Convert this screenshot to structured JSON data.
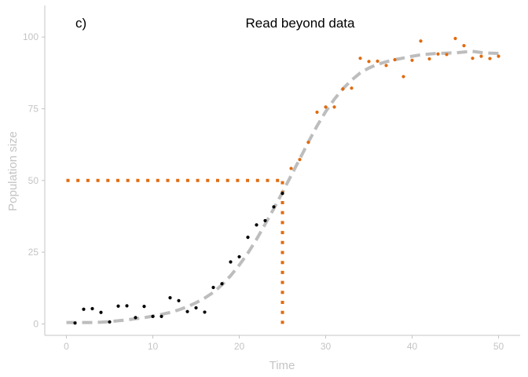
{
  "chart_data": {
    "type": "scatter",
    "panel_label": "c)",
    "title": "Read beyond data",
    "xlabel": "Time",
    "ylabel": "Population size",
    "xlim": [
      -2.5,
      52.5
    ],
    "ylim": [
      -4,
      111
    ],
    "x_ticks": [
      0,
      10,
      20,
      30,
      40,
      50
    ],
    "y_ticks": [
      0,
      25,
      50,
      75,
      100
    ],
    "grid": false,
    "colors": {
      "observed": "#000000",
      "beyond": "#e06b10",
      "fit": "#bdbdbd",
      "reference": "#e06b10",
      "axis": "#c4c4c4"
    },
    "series": [
      {
        "style": "black points",
        "x": [
          1,
          2,
          3,
          4,
          5,
          6,
          7,
          8,
          9,
          10,
          11,
          12,
          13,
          14,
          15,
          16,
          17,
          18,
          19,
          20,
          21,
          22,
          23,
          24,
          25
        ],
        "y": [
          0.3,
          5.1,
          5.3,
          4.0,
          0.7,
          6.2,
          6.3,
          2.2,
          6.1,
          2.6,
          2.6,
          9.1,
          8.1,
          4.3,
          5.6,
          4.1,
          12.7,
          14.0,
          21.6,
          23.4,
          30.2,
          34.5,
          36.0,
          40.8,
          45.5
        ]
      },
      {
        "style": "orange points",
        "x": [
          26,
          27,
          28,
          29,
          30,
          31,
          32,
          33,
          34,
          35,
          36,
          37,
          38,
          39,
          40,
          41,
          42,
          43,
          44,
          45,
          46,
          47,
          48,
          49,
          50
        ],
        "y": [
          54.2,
          57.3,
          63.3,
          73.8,
          75.6,
          75.6,
          81.9,
          82.2,
          92.6,
          91.5,
          91.6,
          90.1,
          92.1,
          86.2,
          91.9,
          98.6,
          92.4,
          94.1,
          93.9,
          99.5,
          97.0,
          92.6,
          93.3,
          92.5,
          93.3
        ]
      },
      {
        "style": "grey dashed fitted curve",
        "x": [
          0,
          1,
          2,
          3,
          4,
          5,
          6,
          7,
          8,
          9,
          10,
          11,
          12,
          13,
          14,
          15,
          16,
          17,
          18,
          19,
          20,
          21,
          22,
          23,
          24,
          25,
          26,
          27,
          28,
          29,
          30,
          31,
          32,
          33,
          34,
          35,
          36,
          37,
          38,
          39,
          40,
          41,
          42,
          43,
          44,
          45,
          46,
          47,
          48,
          49,
          50
        ],
        "y": [
          0.5,
          0.5,
          0.5,
          0.5,
          0.6,
          0.8,
          1.1,
          1.4,
          1.8,
          2.2,
          2.7,
          3.3,
          4.0,
          4.9,
          6.0,
          7.4,
          9.0,
          11.0,
          13.6,
          16.8,
          20.5,
          24.7,
          29.5,
          34.8,
          40.2,
          45.9,
          51.7,
          57.5,
          63.4,
          69.0,
          74.0,
          78.3,
          82.0,
          85.0,
          87.5,
          89.2,
          90.5,
          91.4,
          92.1,
          92.7,
          93.3,
          93.8,
          94.1,
          94.3,
          94.4,
          94.5,
          94.8,
          95.0,
          94.6,
          94.4,
          94.3
        ]
      }
    ],
    "reference_lines": [
      {
        "orientation": "horizontal",
        "y": 50,
        "x_from": 0,
        "x_to": 25,
        "style": "orange dotted"
      },
      {
        "orientation": "vertical",
        "x": 25,
        "y_from": 0,
        "y_to": 50,
        "style": "orange dotted"
      }
    ]
  }
}
